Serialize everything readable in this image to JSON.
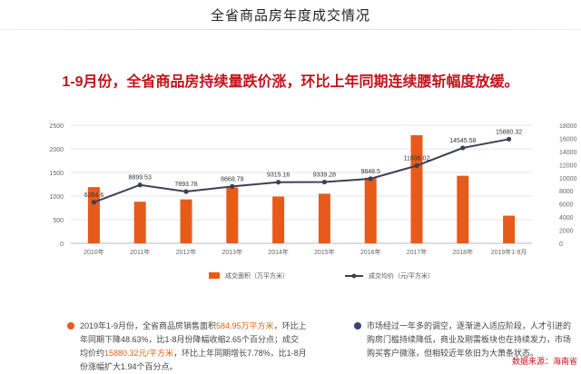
{
  "page_title": "全省商品房年度成交情况",
  "headline": "1-9月份，全省商品房持续量跌价涨，环比上年同期连续腰斩幅度放缓。",
  "chart_data": {
    "type": "bar",
    "categories": [
      "2010年",
      "2011年",
      "2012年",
      "2013年",
      "2014年",
      "2015年",
      "2016年",
      "2017年",
      "2018年",
      "2019年1-9月"
    ],
    "series": [
      {
        "name": "成交面积（万平方米）",
        "kind": "bar",
        "axis": "left",
        "color": "#e85a1a",
        "values": [
          1190,
          880,
          930,
          1180,
          990,
          1050,
          1390,
          2290,
          1430,
          585
        ]
      },
      {
        "name": "成交均价（元/平方米）",
        "kind": "line",
        "axis": "right",
        "color": "#3d3f57",
        "values": [
          6264.6,
          8899.53,
          7893.78,
          8668.79,
          9315.16,
          9339.28,
          9848.5,
          11836.02,
          14545.58,
          15880.32
        ],
        "labels": [
          "6264.6",
          "8899.53",
          "7893.78",
          "8668.79",
          "9315.16",
          "9339.28",
          "9848.5",
          "11836.02",
          "14545.58",
          "15880.32"
        ]
      }
    ],
    "y_left_ticks": [
      "0",
      "500",
      "1000",
      "1500",
      "2000",
      "2500"
    ],
    "y_right_ticks": [
      "0",
      "2000",
      "4000",
      "6000",
      "8000",
      "10000",
      "12000",
      "14000",
      "16000",
      "18000"
    ],
    "ylim_left": [
      0,
      2500
    ],
    "ylim_right": [
      0,
      18000
    ],
    "grid": true,
    "legend_position": "bottom"
  },
  "notes": {
    "left": {
      "dot_color": "#e85a1a",
      "p1": "2019年1-9月份，全省商品房销售面积",
      "h1": "584.95万平方米",
      "p2": "，环比上年同期下降48.63%，比1-8月份降幅收缩2.65个百分点；成交均价约",
      "h2": "15880.32元/平方米",
      "p3": "，环比上年同期增长7.78%，比1-8月份涨幅扩大1.94个百分点。"
    },
    "right": {
      "dot_color": "#3d3f7a",
      "text": "市场经过一年多的调空，逐渐进入适应阶段，人才引进的购房门槛持续降低，商业及刚需板块也在持续发力，市场购买客户微涨，但相较近年依旧为大萧条状态。"
    }
  },
  "source": "数据来源：海南省"
}
